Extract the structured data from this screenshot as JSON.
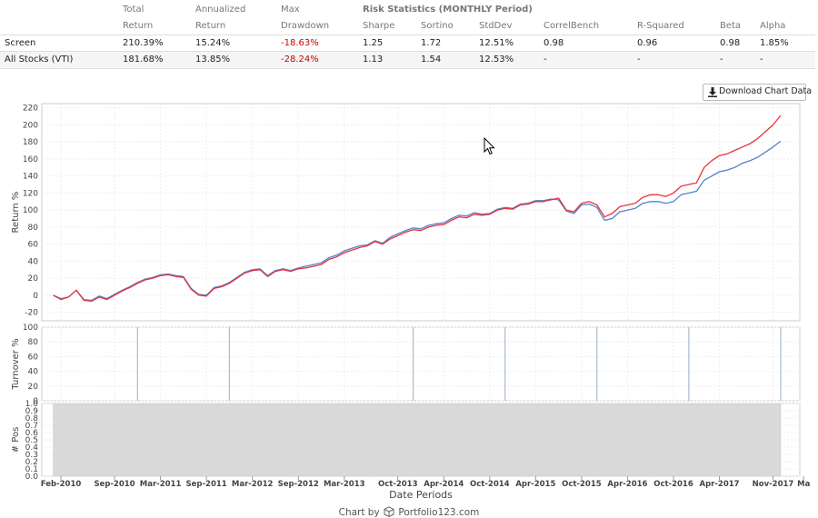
{
  "stats": {
    "headers": [
      {
        "top": "Total",
        "bottom": "Return"
      },
      {
        "top": "Annualized",
        "bottom": "Return"
      },
      {
        "top": "Max",
        "bottom": "Drawdown"
      },
      {
        "top": "Risk Statistics (MONTHLY Period)",
        "bottom": "Sharpe"
      },
      {
        "top": "",
        "bottom": "Sortino"
      },
      {
        "top": "",
        "bottom": "StdDev"
      },
      {
        "top": "",
        "bottom": "CorrelBench"
      },
      {
        "top": "",
        "bottom": "R-Squared"
      },
      {
        "top": "",
        "bottom": "Beta"
      },
      {
        "top": "",
        "bottom": "Alpha"
      }
    ],
    "rows": [
      {
        "name": "Screen",
        "values": [
          "210.39%",
          "15.24%",
          "-18.63%",
          "1.25",
          "1.72",
          "12.51%",
          "0.98",
          "0.96",
          "0.98",
          "1.85%"
        ]
      },
      {
        "name": "All Stocks (VTI)",
        "values": [
          "181.68%",
          "13.85%",
          "-28.24%",
          "1.13",
          "1.54",
          "12.53%",
          "-",
          "-",
          "-",
          "-"
        ]
      }
    ]
  },
  "download_button": {
    "label": "Download Chart Data",
    "icon": "download-icon"
  },
  "footer": {
    "prefix": "Chart by",
    "brand": "Portfolio123.com",
    "icon": "cube-icon"
  },
  "chart_data": {
    "type": "line",
    "xlabel": "Date Periods",
    "x_ticks": [
      "Feb-2010",
      "Sep-2010",
      "Mar-2011",
      "Sep-2011",
      "Mar-2012",
      "Sep-2012",
      "Mar-2013",
      "Oct-2013",
      "Apr-2014",
      "Oct-2014",
      "Apr-2015",
      "Oct-2015",
      "Apr-2016",
      "Oct-2016",
      "Apr-2017",
      "Nov-2017",
      "Ma"
    ],
    "grid": true,
    "panels": [
      {
        "ylabel": "Return %",
        "ylim": [
          -30,
          225
        ],
        "yticks": [
          -20,
          0,
          20,
          40,
          60,
          80,
          100,
          120,
          140,
          160,
          180,
          200,
          220
        ],
        "x": [
          "2010-01",
          "2010-02",
          "2010-03",
          "2010-04",
          "2010-05",
          "2010-06",
          "2010-07",
          "2010-08",
          "2010-09",
          "2010-10",
          "2010-11",
          "2010-12",
          "2011-01",
          "2011-02",
          "2011-03",
          "2011-04",
          "2011-05",
          "2011-06",
          "2011-07",
          "2011-08",
          "2011-09",
          "2011-10",
          "2011-11",
          "2011-12",
          "2012-01",
          "2012-02",
          "2012-03",
          "2012-04",
          "2012-05",
          "2012-06",
          "2012-07",
          "2012-08",
          "2012-09",
          "2012-10",
          "2012-11",
          "2012-12",
          "2013-01",
          "2013-02",
          "2013-03",
          "2013-04",
          "2013-05",
          "2013-06",
          "2013-07",
          "2013-08",
          "2013-09",
          "2013-10",
          "2013-11",
          "2013-12",
          "2014-01",
          "2014-02",
          "2014-03",
          "2014-04",
          "2014-05",
          "2014-06",
          "2014-07",
          "2014-08",
          "2014-09",
          "2014-10",
          "2014-11",
          "2014-12",
          "2015-01",
          "2015-02",
          "2015-03",
          "2015-04",
          "2015-05",
          "2015-06",
          "2015-07",
          "2015-08",
          "2015-09",
          "2015-10",
          "2015-11",
          "2015-12",
          "2016-01",
          "2016-02",
          "2016-03",
          "2016-04",
          "2016-05",
          "2016-06",
          "2016-07",
          "2016-08",
          "2016-09",
          "2016-10",
          "2016-11",
          "2016-12",
          "2017-01",
          "2017-02",
          "2017-03",
          "2017-04",
          "2017-05",
          "2017-06",
          "2017-07",
          "2017-08",
          "2017-09",
          "2017-10",
          "2017-11",
          "2017-12"
        ],
        "series": [
          {
            "name": "Screen",
            "color": "#e8333c",
            "values": [
              0,
              -5,
              -2,
              6,
              -6,
              -7,
              -2,
              -5,
              0,
              5,
              9,
              14,
              18,
              20,
              23,
              24,
              22,
              21,
              7,
              0,
              -1,
              8,
              10,
              14,
              20,
              26,
              29,
              30,
              22,
              28,
              30,
              28,
              31,
              32,
              34,
              36,
              42,
              45,
              50,
              53,
              56,
              58,
              63,
              60,
              66,
              70,
              74,
              77,
              76,
              80,
              82,
              83,
              88,
              92,
              91,
              95,
              94,
              95,
              100,
              102,
              101,
              106,
              107,
              110,
              110,
              112,
              114,
              100,
              98,
              108,
              110,
              106,
              92,
              96,
              104,
              106,
              108,
              115,
              118,
              118,
              116,
              120,
              128,
              130,
              132,
              150,
              158,
              164,
              166,
              170,
              174,
              178,
              184,
              192,
              200,
              211
            ]
          },
          {
            "name": "All Stocks (VTI)",
            "color": "#5580c8",
            "values": [
              0,
              -4,
              -2,
              6,
              -5,
              -6,
              -1,
              -4,
              1,
              6,
              10,
              15,
              19,
              21,
              24,
              25,
              23,
              22,
              8,
              1,
              0,
              9,
              11,
              15,
              21,
              27,
              30,
              31,
              23,
              29,
              31,
              29,
              32,
              34,
              36,
              38,
              44,
              47,
              52,
              55,
              58,
              59,
              64,
              61,
              68,
              72,
              76,
              79,
              78,
              82,
              84,
              85,
              90,
              94,
              93,
              97,
              95,
              96,
              101,
              103,
              102,
              107,
              108,
              111,
              111,
              113,
              112,
              99,
              96,
              106,
              107,
              103,
              88,
              90,
              98,
              100,
              102,
              108,
              110,
              110,
              108,
              110,
              118,
              120,
              122,
              135,
              140,
              145,
              147,
              150,
              155,
              158,
              162,
              168,
              174,
              181
            ]
          }
        ]
      },
      {
        "ylabel": "Turnover %",
        "ylim": [
          0,
          100
        ],
        "yticks": [
          0,
          20,
          40,
          60,
          80,
          100
        ],
        "spikes_at": [
          "2010-12",
          "2011-12",
          "2013-12",
          "2014-12",
          "2015-12",
          "2016-12",
          "2017-12"
        ],
        "spike_value": 100,
        "color": "#aabbcc"
      },
      {
        "ylabel": "# Pos",
        "ylim": [
          0,
          1
        ],
        "yticks": [
          0.0,
          0.1,
          0.2,
          0.3,
          0.4,
          0.5,
          0.6,
          0.7,
          0.8,
          0.9,
          1.0
        ],
        "value": 1.0,
        "color": "#d9d9d9"
      }
    ]
  }
}
